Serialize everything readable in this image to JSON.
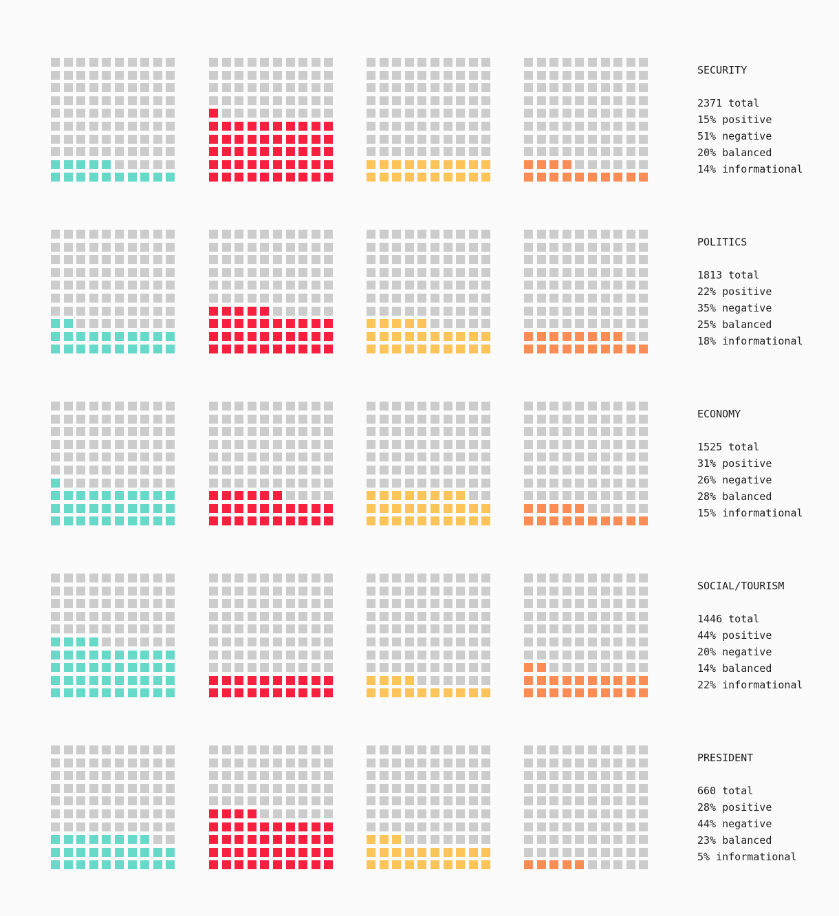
{
  "colors": {
    "empty": "#cccccc",
    "positive": "#66d9c8",
    "negative": "#f7203f",
    "balanced": "#fdc45a",
    "informational": "#f98d55"
  },
  "chart_data": {
    "type": "waffle",
    "grid": "10x10 (each cell = 1%)",
    "sentiments": [
      "positive",
      "negative",
      "balanced",
      "informational"
    ],
    "rows": [
      {
        "topic": "SECURITY",
        "total": 2371,
        "positive": 15,
        "negative": 51,
        "balanced": 20,
        "informational": 14,
        "lines": [
          "2371 total",
          "15% positive",
          "51% negative",
          "20% balanced",
          "14% informational"
        ]
      },
      {
        "topic": "POLITICS",
        "total": 1813,
        "positive": 22,
        "negative": 35,
        "balanced": 25,
        "informational": 18,
        "lines": [
          "1813 total",
          "22% positive",
          "35% negative",
          "25% balanced",
          "18% informational"
        ]
      },
      {
        "topic": "ECONOMY",
        "total": 1525,
        "positive": 31,
        "negative": 26,
        "balanced": 28,
        "informational": 15,
        "lines": [
          "1525 total",
          "31% positive",
          "26% negative",
          "28% balanced",
          "15% informational"
        ]
      },
      {
        "topic": "SOCIAL/TOURISM",
        "total": 1446,
        "positive": 44,
        "negative": 20,
        "balanced": 14,
        "informational": 22,
        "lines": [
          "1446 total",
          "44% positive",
          "20% negative",
          "14% balanced",
          "22% informational"
        ]
      },
      {
        "topic": "PRESIDENT",
        "total": 660,
        "positive": 28,
        "negative": 44,
        "balanced": 23,
        "informational": 5,
        "lines": [
          "660 total",
          "28% positive",
          "44% negative",
          "23% balanced",
          "5% informational"
        ]
      }
    ]
  }
}
